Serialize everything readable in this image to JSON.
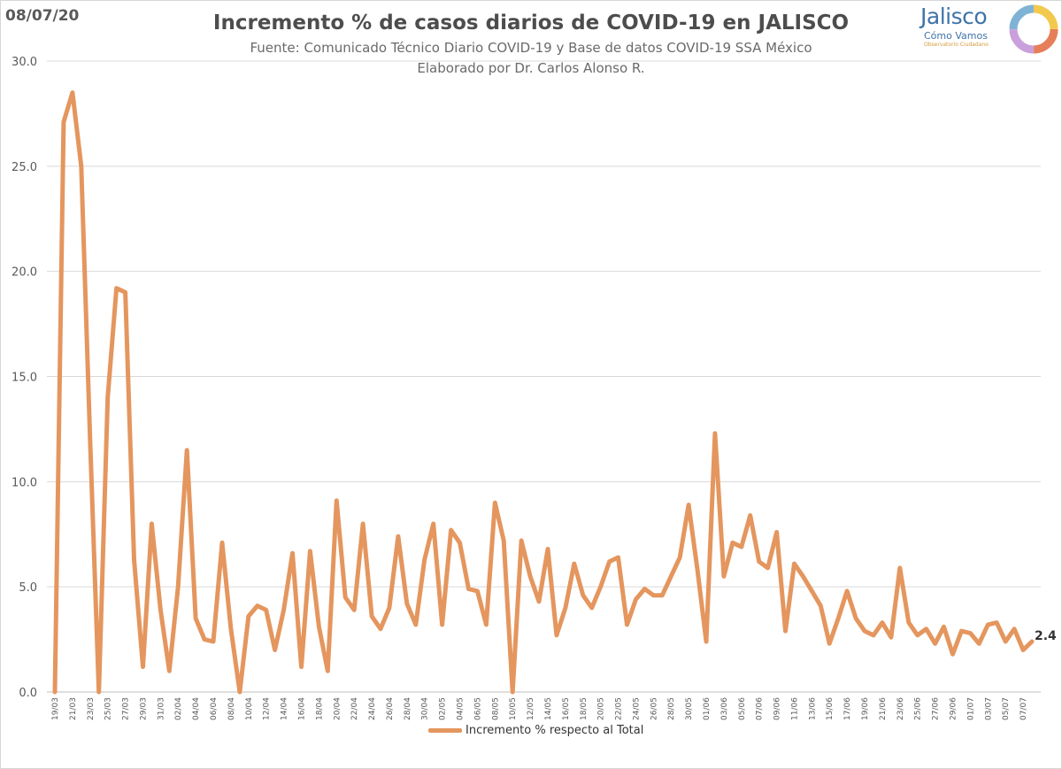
{
  "header": {
    "date": "08/07/20",
    "title": "Incremento % de casos diarios de COVID-19 en JALISCO",
    "subtitle1": "Fuente: Comunicado Técnico Diario COVID-19 y Base de datos COVID-19 SSA México",
    "subtitle2": "Elaborado por Dr. Carlos Alonso R."
  },
  "logo": {
    "name": "Jalisco",
    "tagline": "Cómo Vamos",
    "small": "Observatorio Ciudadano",
    "icon": "colored-ring-icon"
  },
  "colors": {
    "line": "#e4965e",
    "grid": "#d9d9d9",
    "axis_text": "#595959"
  },
  "chart_data": {
    "type": "line",
    "title": "Incremento % de casos diarios de COVID-19 en JALISCO",
    "xlabel": "",
    "ylabel": "",
    "ylim": [
      0,
      30
    ],
    "yticks": [
      "0.0",
      "5.0",
      "10.0",
      "15.0",
      "20.0",
      "25.0",
      "30.0"
    ],
    "grid": true,
    "legend": "bottom",
    "end_label": "2.4",
    "x_tick_labels": [
      "19/03",
      "21/03",
      "23/03",
      "25/03",
      "27/03",
      "29/03",
      "31/03",
      "02/04",
      "04/04",
      "06/04",
      "08/04",
      "10/04",
      "12/04",
      "14/04",
      "16/04",
      "18/04",
      "20/04",
      "22/04",
      "24/04",
      "26/04",
      "28/04",
      "30/04",
      "02/05",
      "04/05",
      "06/05",
      "08/05",
      "10/05",
      "12/05",
      "14/05",
      "16/05",
      "18/05",
      "20/05",
      "22/05",
      "24/05",
      "26/05",
      "28/05",
      "30/05",
      "01/06",
      "03/06",
      "05/06",
      "07/06",
      "09/06",
      "11/06",
      "13/06",
      "15/06",
      "17/06",
      "19/06",
      "21/06",
      "23/06",
      "25/06",
      "27/06",
      "29/06",
      "01/07",
      "03/07",
      "05/07",
      "07/07"
    ],
    "series": [
      {
        "name": "Incremento % respecto al Total",
        "start_date": "19/03",
        "values": [
          0.0,
          27.1,
          28.5,
          25.0,
          12.0,
          0.0,
          14.0,
          19.2,
          19.0,
          6.3,
          1.2,
          8.0,
          3.9,
          1.0,
          5.0,
          11.5,
          3.5,
          2.5,
          2.4,
          7.1,
          3.0,
          0.0,
          3.6,
          4.1,
          3.9,
          2.0,
          3.9,
          6.6,
          1.2,
          6.7,
          3.1,
          1.0,
          9.1,
          4.5,
          3.9,
          8.0,
          3.6,
          3.0,
          4.0,
          7.4,
          4.2,
          3.2,
          6.3,
          8.0,
          3.2,
          7.7,
          7.1,
          4.9,
          4.8,
          3.2,
          9.0,
          7.2,
          0.0,
          7.2,
          5.5,
          4.3,
          6.8,
          2.7,
          4.0,
          6.1,
          4.6,
          4.0,
          5.0,
          6.2,
          6.4,
          3.2,
          4.4,
          4.9,
          4.6,
          4.6,
          5.5,
          6.4,
          8.9,
          5.8,
          2.4,
          12.3,
          5.5,
          7.1,
          6.9,
          8.4,
          6.2,
          5.9,
          7.6,
          2.9,
          6.1,
          5.5,
          4.8,
          4.1,
          2.3,
          3.5,
          4.8,
          3.5,
          2.9,
          2.7,
          3.3,
          2.6,
          5.9,
          3.3,
          2.7,
          3.0,
          2.3,
          3.1,
          1.8,
          2.9,
          2.8,
          2.3,
          3.2,
          3.3,
          2.4,
          3.0,
          2.0,
          2.4
        ]
      }
    ]
  }
}
